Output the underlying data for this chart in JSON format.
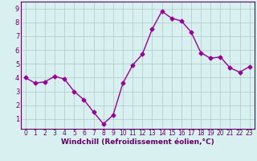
{
  "x": [
    0,
    1,
    2,
    3,
    4,
    5,
    6,
    7,
    8,
    9,
    10,
    11,
    12,
    13,
    14,
    15,
    16,
    17,
    18,
    19,
    20,
    21,
    22,
    23
  ],
  "y": [
    4.0,
    3.6,
    3.7,
    4.1,
    3.9,
    3.0,
    2.4,
    1.5,
    0.65,
    1.3,
    3.6,
    4.9,
    5.7,
    7.5,
    8.8,
    8.3,
    8.1,
    7.3,
    5.8,
    5.4,
    5.5,
    4.7,
    4.4,
    4.8
  ],
  "line_color": "#990099",
  "marker": "D",
  "markersize": 2.5,
  "linewidth": 1.0,
  "bg_color": "#d8f0f0",
  "grid_color": "#b0c8c8",
  "xlabel": "Windchill (Refroidissement éolien,°C)",
  "xlabel_fontsize": 6.5,
  "xlabel_color": "#660066",
  "ylabel_ticks": [
    1,
    2,
    3,
    4,
    5,
    6,
    7,
    8,
    9
  ],
  "xticks": [
    0,
    1,
    2,
    3,
    4,
    5,
    6,
    7,
    8,
    9,
    10,
    11,
    12,
    13,
    14,
    15,
    16,
    17,
    18,
    19,
    20,
    21,
    22,
    23
  ],
  "ylim": [
    0.3,
    9.5
  ],
  "xlim": [
    -0.5,
    23.5
  ],
  "tick_color": "#660066",
  "spine_color": "#660066",
  "tick_fontsize": 5.5
}
